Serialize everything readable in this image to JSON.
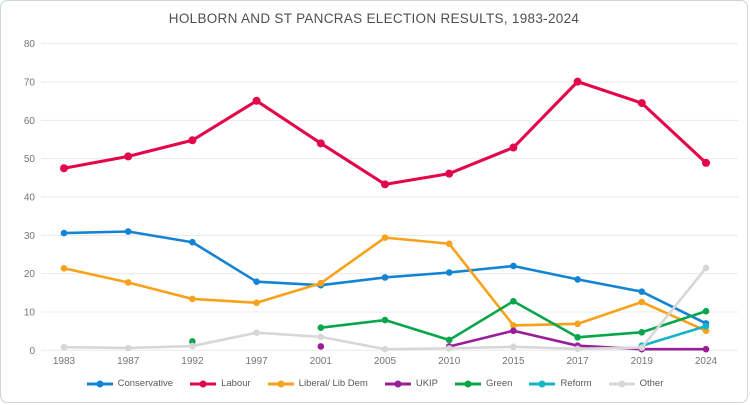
{
  "chart_data": {
    "type": "line",
    "title": "HOLBORN AND ST PANCRAS ELECTION RESULTS, 1983-2024",
    "categories": [
      "1983",
      "1987",
      "1992",
      "1997",
      "2001",
      "2005",
      "2010",
      "2015",
      "2017",
      "2019",
      "2024"
    ],
    "series": [
      {
        "name": "Conservative",
        "color": "#1384d4",
        "values": [
          30.6,
          31.0,
          28.2,
          17.9,
          17.0,
          19.0,
          20.3,
          22.0,
          18.5,
          15.3,
          7.0
        ]
      },
      {
        "name": "Labour",
        "color": "#e4064b",
        "values": [
          47.5,
          50.6,
          54.8,
          65.1,
          54.0,
          43.3,
          46.1,
          52.9,
          70.1,
          64.5,
          48.9
        ]
      },
      {
        "name": "Liberal/ Lib Dem",
        "color": "#f7a21a",
        "values": [
          21.4,
          17.7,
          13.4,
          12.4,
          17.5,
          29.4,
          27.8,
          6.5,
          6.9,
          12.6,
          5.1
        ]
      },
      {
        "name": "UKIP",
        "color": "#9a1d9a",
        "values": [
          null,
          null,
          null,
          null,
          1.0,
          null,
          1.0,
          5.1,
          1.2,
          0.3,
          0.3
        ]
      },
      {
        "name": "Green",
        "color": "#07a64c",
        "values": [
          null,
          null,
          2.3,
          null,
          5.9,
          7.9,
          2.7,
          12.8,
          3.4,
          4.7,
          10.2
        ]
      },
      {
        "name": "Reform",
        "color": "#16b4cc",
        "values": [
          null,
          null,
          null,
          null,
          null,
          null,
          null,
          null,
          null,
          1.2,
          6.3
        ]
      },
      {
        "name": "Other",
        "color": "#d7d7d7",
        "values": [
          0.8,
          0.6,
          1.1,
          4.6,
          3.5,
          0.3,
          0.5,
          0.9,
          0.4,
          0.7,
          21.5
        ]
      }
    ],
    "ylim": [
      0,
      80
    ],
    "yticks": [
      0,
      10,
      20,
      30,
      40,
      50,
      60,
      70,
      80
    ],
    "xlabel": "",
    "ylabel": "",
    "grid": true,
    "legend_position": "bottom"
  }
}
